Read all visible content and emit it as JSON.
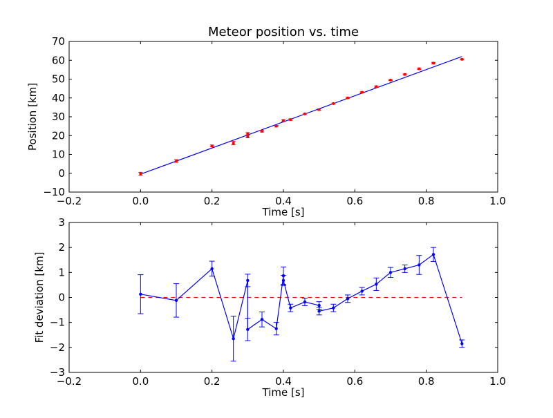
{
  "colors": {
    "position_points": "#ff0000",
    "fit_line": "#0000ff",
    "deviation": "#0000ff",
    "zero_line": "#ff0000",
    "axes": "#000000"
  },
  "chart_data": [
    {
      "type": "scatter",
      "title": "Meteor position vs. time",
      "xlabel": "Time [s]",
      "ylabel": "Position [km]",
      "xlim": [
        -0.2,
        1.0
      ],
      "ylim": [
        -10,
        70
      ],
      "x_ticks": [
        "−0.2",
        "0.0",
        "0.2",
        "0.4",
        "0.6",
        "0.8",
        "1.0"
      ],
      "y_ticks": [
        "−10",
        "0",
        "10",
        "20",
        "30",
        "40",
        "50",
        "60",
        "70"
      ],
      "grid": false,
      "points": {
        "x": [
          0.0,
          0.1,
          0.2,
          0.26,
          0.3,
          0.3,
          0.34,
          0.38,
          0.4,
          0.42,
          0.46,
          0.5,
          0.54,
          0.58,
          0.62,
          0.66,
          0.7,
          0.74,
          0.78,
          0.82,
          0.9
        ],
        "y": [
          -0.3,
          6.5,
          14.5,
          16.0,
          19.5,
          21.0,
          22.3,
          25.0,
          28.0,
          28.5,
          31.5,
          33.8,
          37.0,
          40.0,
          43.0,
          46.0,
          49.5,
          52.5,
          55.5,
          58.5,
          60.5
        ],
        "err": [
          0.8,
          0.7,
          0.5,
          0.9,
          0.7,
          0.6,
          0.4,
          0.4,
          0.5,
          0.4,
          0.3,
          0.4,
          0.3,
          0.3,
          0.3,
          0.4,
          0.3,
          0.3,
          0.4,
          0.4,
          0.3
        ]
      },
      "fit_line": {
        "x": [
          0.0,
          0.9
        ],
        "y": [
          -0.5,
          62.0
        ]
      }
    },
    {
      "type": "line",
      "title": "",
      "xlabel": "Time [s]",
      "ylabel": "Fit deviation [km]",
      "xlim": [
        -0.2,
        1.0
      ],
      "ylim": [
        -3,
        3
      ],
      "x_ticks": [
        "−0.2",
        "0.0",
        "0.2",
        "0.4",
        "0.6",
        "0.8",
        "1.0"
      ],
      "y_ticks": [
        "−3",
        "−2",
        "−1",
        "0",
        "1",
        "2",
        "3"
      ],
      "grid": false,
      "series": {
        "x": [
          0.0,
          0.1,
          0.2,
          0.26,
          0.3,
          0.3,
          0.34,
          0.38,
          0.4,
          0.4,
          0.42,
          0.46,
          0.5,
          0.5,
          0.54,
          0.58,
          0.62,
          0.66,
          0.7,
          0.74,
          0.78,
          0.82,
          0.9
        ],
        "y": [
          0.13,
          -0.12,
          1.15,
          -1.65,
          0.68,
          -1.28,
          -0.88,
          -1.25,
          0.87,
          0.68,
          -0.42,
          -0.18,
          -0.32,
          -0.55,
          -0.42,
          -0.05,
          0.25,
          0.53,
          1.0,
          1.15,
          1.3,
          1.72,
          -1.85
        ],
        "err": [
          0.78,
          0.67,
          0.3,
          0.9,
          0.25,
          0.45,
          0.3,
          0.25,
          0.35,
          0.2,
          0.15,
          0.15,
          0.15,
          0.15,
          0.15,
          0.15,
          0.15,
          0.25,
          0.2,
          0.15,
          0.38,
          0.28,
          0.15
        ]
      },
      "zero_line": {
        "x": [
          0.0,
          0.9
        ],
        "y": [
          0,
          0
        ]
      }
    }
  ]
}
